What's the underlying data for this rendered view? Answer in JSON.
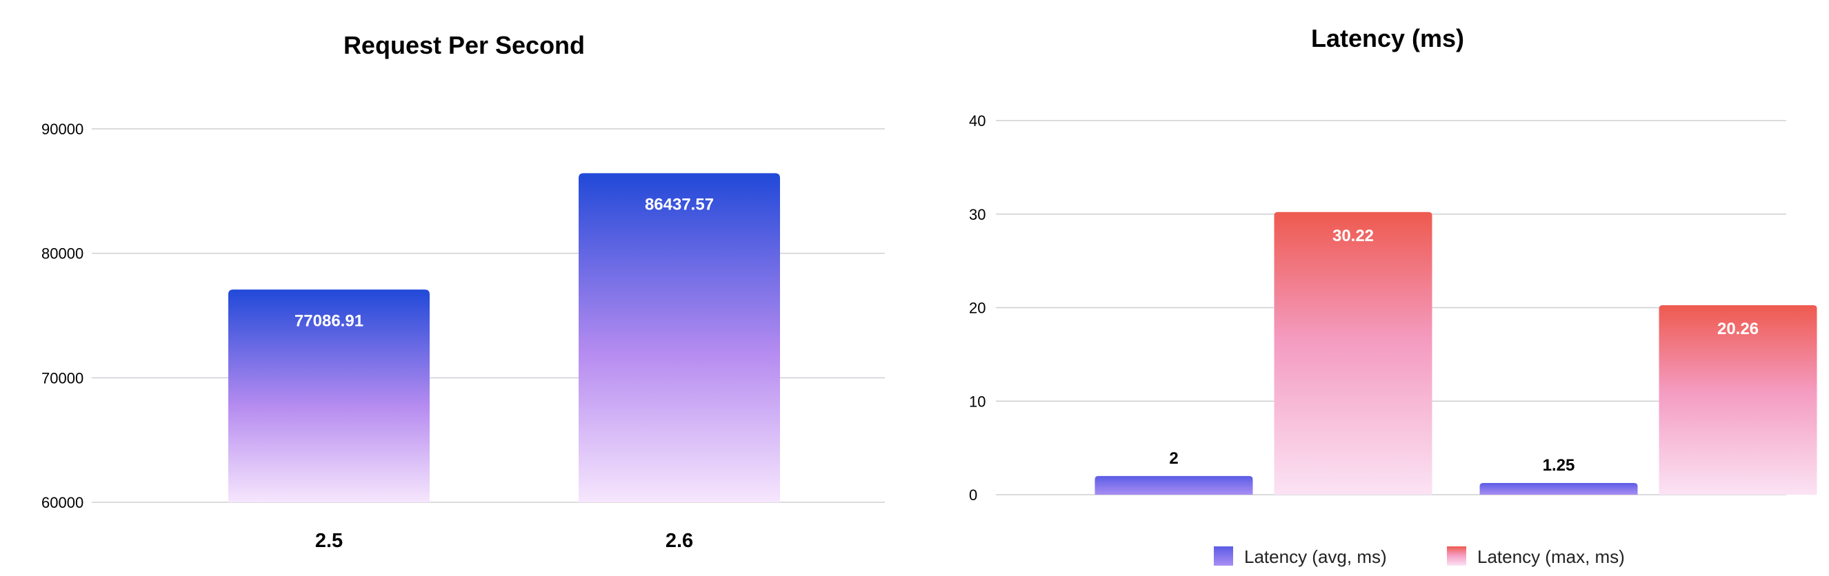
{
  "chart_data": [
    {
      "type": "bar",
      "title": "Request Per Second",
      "categories": [
        "2.5",
        "2.6"
      ],
      "series": [
        {
          "values": [
            77086.91,
            86437.57
          ]
        }
      ],
      "ylim": [
        60000,
        90000
      ],
      "yticks": [
        60000,
        70000,
        80000,
        90000
      ],
      "grid": true,
      "legend": "none",
      "colors": {
        "top": "#2149d8",
        "mid": "#b68cf0",
        "bottom": "#f6e6fd"
      }
    },
    {
      "type": "bar",
      "title": "Latency (ms)",
      "categories": [
        "",
        ""
      ],
      "series": [
        {
          "name": "Latency (avg, ms)",
          "values": [
            2,
            1.25
          ],
          "labels": [
            "2",
            "1.25"
          ],
          "colors": {
            "top": "#5b5ce6",
            "bottom": "#a98ef2"
          }
        },
        {
          "name": "Latency (max, ms)",
          "values": [
            30.22,
            20.26
          ],
          "labels": [
            "30.22",
            "20.26"
          ],
          "colors": {
            "top": "#ee5a4f",
            "bottom": "#fbe3f4"
          }
        }
      ],
      "ylim": [
        0,
        40
      ],
      "yticks": [
        0,
        10,
        20,
        30,
        40
      ],
      "grid": true,
      "legend": "bottom"
    }
  ]
}
